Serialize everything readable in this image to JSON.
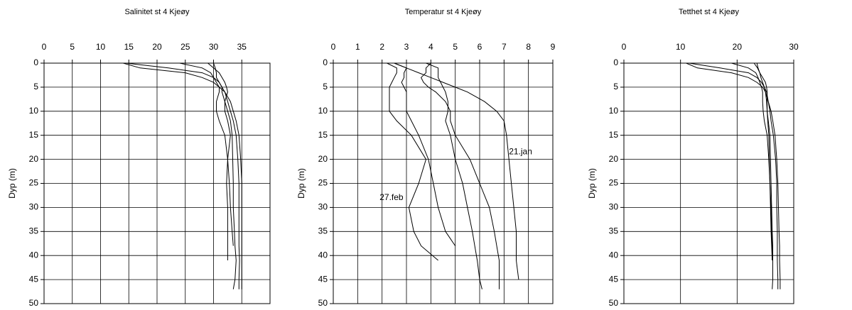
{
  "chart_data": [
    {
      "type": "line",
      "title": "Salinitet st 4 Kjeøy",
      "ylabel": "Dyp (m)",
      "y": [
        0,
        1,
        2,
        3,
        4,
        5,
        6,
        8,
        10,
        12,
        15,
        20,
        25,
        30,
        35,
        38,
        41,
        45,
        47
      ],
      "series": [
        {
          "color": "#000000",
          "values": [
            14,
            17,
            25,
            28,
            30,
            31,
            32,
            33,
            33.5,
            34,
            34.5,
            34.8,
            35,
            35,
            35,
            35,
            35,
            35,
            35
          ]
        },
        {
          "color": "#000000",
          "values": [
            14.5,
            22,
            28,
            30,
            31,
            31.5,
            32,
            32.5,
            33,
            33.5,
            34,
            34.3,
            34.5,
            34.5,
            34.5,
            34.5,
            34.6,
            34.5,
            34.5
          ]
        },
        {
          "color": "#000000",
          "values": [
            24,
            28,
            29.5,
            30,
            30.5,
            31,
            31,
            30.5,
            30.5,
            31,
            32,
            32.5,
            32.8,
            33,
            33.3,
            33.5,
            null,
            null,
            null
          ]
        },
        {
          "color": "#000000",
          "values": [
            29,
            30,
            31,
            31.5,
            32,
            32.3,
            32.5,
            32,
            32,
            32.5,
            33,
            32.5,
            32.3,
            32.5,
            32.5,
            32.5,
            32.5,
            null,
            null
          ]
        },
        {
          "color": "#000000",
          "values": [
            30,
            30.3,
            30.5,
            30.5,
            31,
            31.5,
            31.5,
            32,
            32.5,
            33,
            33.3,
            33.4,
            33.5,
            33.5,
            33.7,
            33.8,
            34,
            33.8,
            33.5
          ]
        }
      ],
      "xlim": [
        0,
        40
      ],
      "xticks": [
        0,
        5,
        10,
        15,
        20,
        25,
        30,
        35
      ],
      "ylim": [
        0,
        50
      ],
      "yticks": [
        0,
        5,
        10,
        15,
        20,
        25,
        30,
        35,
        40,
        45,
        50
      ],
      "y_inverted": true,
      "x_axis_position": "top",
      "grid": true
    },
    {
      "type": "line",
      "title": "Temperatur st 4 Kjeøy",
      "ylabel": "Dyp (m)",
      "y": [
        0,
        1,
        2,
        3,
        4,
        5,
        6,
        8,
        10,
        12,
        15,
        20,
        25,
        30,
        35,
        38,
        41,
        45,
        47
      ],
      "series": [
        {
          "color": "#000000",
          "values": [
            2.5,
            3.0,
            3.5,
            4.0,
            4.5,
            5.0,
            5.5,
            6.2,
            6.7,
            7.0,
            7.1,
            7.2,
            7.3,
            7.4,
            7.5,
            7.5,
            7.5,
            7.6,
            null
          ]
        },
        {
          "color": "#000000",
          "values": [
            4.0,
            3.8,
            3.8,
            3.6,
            3.7,
            3.9,
            4.2,
            4.6,
            4.8,
            4.8,
            5.0,
            5.6,
            6.0,
            6.4,
            6.6,
            6.7,
            6.8,
            6.8,
            6.8
          ]
        },
        {
          "color": "#000000",
          "values": [
            3.8,
            4.3,
            4.3,
            4.3,
            4.4,
            4.5,
            4.6,
            4.7,
            4.7,
            4.6,
            4.8,
            5.0,
            5.3,
            5.5,
            5.7,
            5.8,
            5.9,
            6.0,
            6.1
          ]
        },
        {
          "color": "#000000",
          "values": [
            2.5,
            3.0,
            2.9,
            2.9,
            2.8,
            2.9,
            3.0,
            3.0,
            3.0,
            3.2,
            3.5,
            3.9,
            4.1,
            4.3,
            4.6,
            5.0,
            null,
            null,
            null
          ]
        },
        {
          "color": "#000000",
          "values": [
            2.2,
            2.6,
            2.6,
            2.5,
            2.4,
            2.3,
            2.3,
            2.3,
            2.3,
            2.6,
            3.2,
            3.8,
            3.5,
            3.1,
            3.3,
            3.6,
            4.3,
            null,
            null
          ]
        }
      ],
      "annotations": [
        "21.jan",
        "27.feb"
      ],
      "xlim": [
        0,
        9
      ],
      "xticks": [
        0,
        1,
        2,
        3,
        4,
        5,
        6,
        7,
        8,
        9
      ],
      "ylim": [
        0,
        50
      ],
      "yticks": [
        0,
        5,
        10,
        15,
        20,
        25,
        30,
        35,
        40,
        45,
        50
      ],
      "y_inverted": true,
      "x_axis_position": "top",
      "grid": true
    },
    {
      "type": "line",
      "title": "Tetthet st 4 Kjeøy",
      "ylabel": "Dyp (m)",
      "y": [
        0,
        1,
        2,
        3,
        4,
        5,
        6,
        8,
        10,
        12,
        15,
        20,
        25,
        30,
        35,
        38,
        41,
        45,
        47
      ],
      "series": [
        {
          "color": "#000000",
          "values": [
            11,
            13,
            19,
            22,
            23.5,
            24.5,
            25,
            25.5,
            26,
            26.3,
            26.7,
            27,
            27.2,
            27.3,
            27.4,
            27.5,
            27.5,
            27.6,
            27.6
          ]
        },
        {
          "color": "#000000",
          "values": [
            11.5,
            17,
            22,
            23.5,
            24.3,
            24.8,
            25.2,
            25.5,
            25.8,
            26,
            26.4,
            26.8,
            27,
            27,
            27.1,
            27.1,
            27.1,
            27.2,
            27.2
          ]
        },
        {
          "color": "#000000",
          "values": [
            19,
            22,
            23.3,
            23.7,
            24,
            24.3,
            24.5,
            24.5,
            24.6,
            24.8,
            25.3,
            25.6,
            25.8,
            26,
            26.1,
            26.2,
            26.2,
            null,
            null
          ]
        },
        {
          "color": "#000000",
          "values": [
            23,
            23.6,
            24,
            24.5,
            25,
            25.2,
            25.3,
            25.3,
            25.3,
            25.5,
            25.8,
            25.9,
            26,
            26.1,
            26.2,
            26.3,
            26.3,
            26.3,
            26.2
          ]
        },
        {
          "color": "#000000",
          "values": [
            23.5,
            23.7,
            24,
            24.2,
            24.5,
            24.8,
            25,
            25.2,
            25.3,
            25.4,
            25.6,
            25.7,
            25.8,
            25.9,
            26,
            26.1,
            26.2,
            null,
            null
          ]
        }
      ],
      "xlim": [
        0,
        30
      ],
      "xticks": [
        0,
        10,
        20,
        30
      ],
      "ylim": [
        0,
        50
      ],
      "yticks": [
        0,
        5,
        10,
        15,
        20,
        25,
        30,
        35,
        40,
        45,
        50
      ],
      "y_inverted": true,
      "x_axis_position": "top",
      "grid": true
    }
  ]
}
